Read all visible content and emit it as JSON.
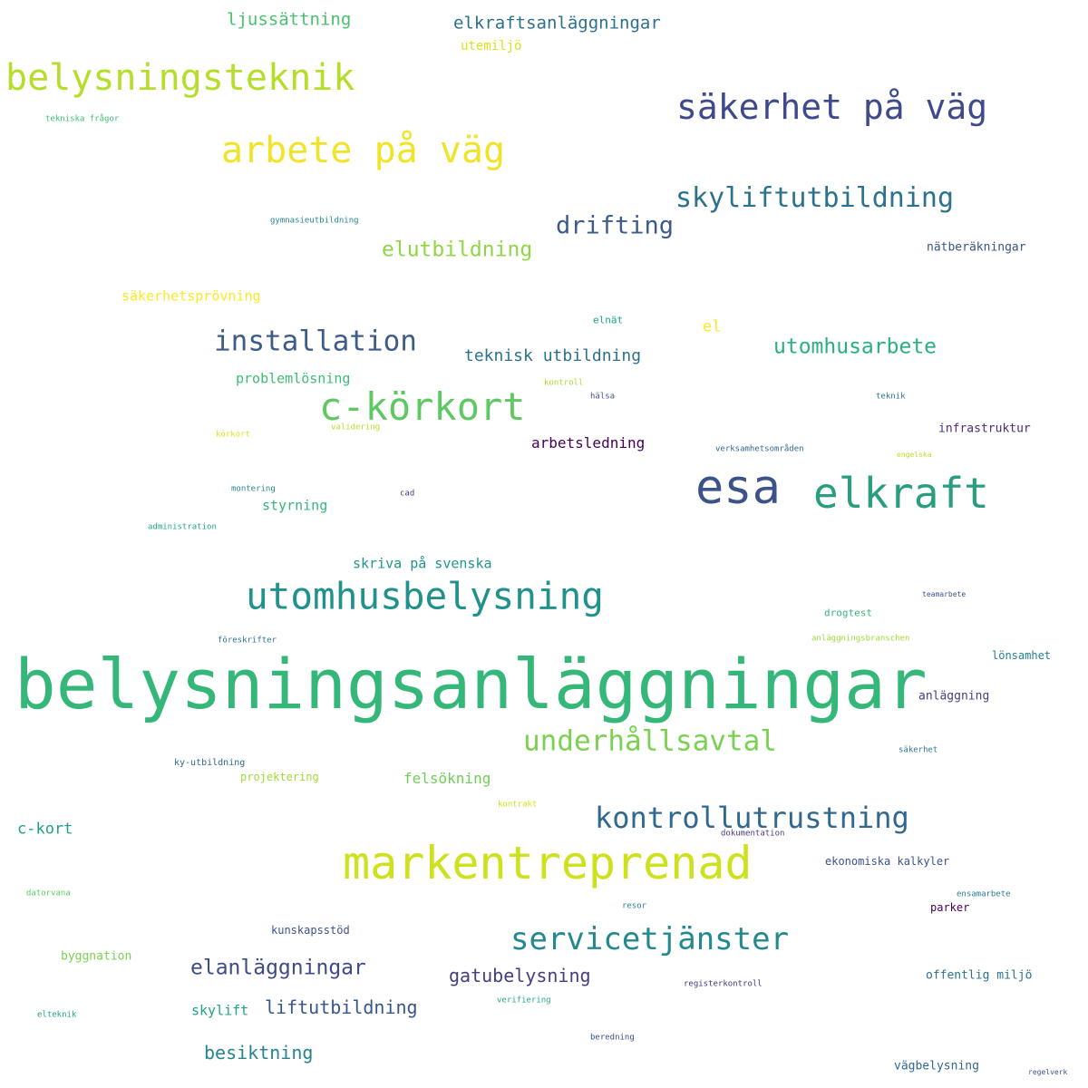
{
  "words": [
    {
      "text": "belysningsanläggningar",
      "color": "#35b779"
    },
    {
      "text": "markentreprenad",
      "color": "#cde11d"
    },
    {
      "text": "esa",
      "color": "#3b528b"
    },
    {
      "text": "elkraft",
      "color": "#2a9d7f"
    },
    {
      "text": "c-körkort",
      "color": "#5ec962"
    },
    {
      "text": "utomhusbelysning",
      "color": "#21918c"
    },
    {
      "text": "belysningsteknik",
      "color": "#b5de2b"
    },
    {
      "text": "arbete på väg",
      "color": "#f0e42a"
    },
    {
      "text": "säkerhet på väg",
      "color": "#3f4a8a"
    },
    {
      "text": "servicetjänster",
      "color": "#23898e"
    },
    {
      "text": "kontrollutrustning",
      "color": "#31688e"
    },
    {
      "text": "underhållsavtal",
      "color": "#7ad151"
    },
    {
      "text": "installation",
      "color": "#3e5c8a"
    },
    {
      "text": "skyliftutbildning",
      "color": "#2c728e"
    },
    {
      "text": "drifting",
      "color": "#3b5c8b"
    },
    {
      "text": "elanläggningar",
      "color": "#3e4a89"
    },
    {
      "text": "utomhusarbete",
      "color": "#2ab07f"
    },
    {
      "text": "elutbildning",
      "color": "#8fd744"
    },
    {
      "text": "gatubelysning",
      "color": "#433e85"
    },
    {
      "text": "liftutbildning",
      "color": "#39568c"
    },
    {
      "text": "besiktning",
      "color": "#25848e"
    },
    {
      "text": "elkraftsanläggningar",
      "color": "#2d708e"
    },
    {
      "text": "ljussättning",
      "color": "#4ac16d"
    },
    {
      "text": "teknisk utbildning",
      "color": "#2c728e"
    },
    {
      "text": "arbetsledning",
      "color": "#440154"
    },
    {
      "text": "c-kort",
      "color": "#1f9e89"
    },
    {
      "text": "felsökning",
      "color": "#6ece58"
    },
    {
      "text": "skriva på svenska",
      "color": "#1f958b"
    },
    {
      "text": "problemlösning",
      "color": "#3dbc74"
    },
    {
      "text": "styrning",
      "color": "#35b779"
    },
    {
      "text": "skylift",
      "color": "#20a386"
    },
    {
      "text": "säkerhetsprövning",
      "color": "#fde725"
    },
    {
      "text": "el",
      "color": "#fde725"
    },
    {
      "text": "utemiljö",
      "color": "#dde318"
    },
    {
      "text": "nätberäkningar",
      "color": "#3b528b"
    },
    {
      "text": "infrastruktur",
      "color": "#472d7b"
    },
    {
      "text": "anläggning",
      "color": "#433e85"
    },
    {
      "text": "lönsamhet",
      "color": "#287d8e"
    },
    {
      "text": "drogtest",
      "color": "#34b679"
    },
    {
      "text": "ekonomiska kalkyler",
      "color": "#3b528b"
    },
    {
      "text": "offentlig miljö",
      "color": "#2c728e"
    },
    {
      "text": "vägbelysning",
      "color": "#31688e"
    },
    {
      "text": "kunskapsstöd",
      "color": "#3b528b"
    },
    {
      "text": "byggnation",
      "color": "#7ad151"
    },
    {
      "text": "projektering",
      "color": "#a0da39"
    },
    {
      "text": "parker",
      "color": "#440154"
    },
    {
      "text": "ky-utbildning",
      "color": "#31688e"
    },
    {
      "text": "elnät",
      "color": "#20a386"
    },
    {
      "text": "tekniska frågor",
      "color": "#3dbc74"
    },
    {
      "text": "gymnasieutbildning",
      "color": "#25848e"
    },
    {
      "text": "kontroll",
      "color": "#a8db34"
    },
    {
      "text": "hälsa",
      "color": "#3b528b"
    },
    {
      "text": "teknik",
      "color": "#2c728e"
    },
    {
      "text": "validering",
      "color": "#b5de2b"
    },
    {
      "text": "körkort",
      "color": "#dde318"
    },
    {
      "text": "verksamhetsområden",
      "color": "#31688e"
    },
    {
      "text": "engelska",
      "color": "#c2df23"
    },
    {
      "text": "montering",
      "color": "#25848e"
    },
    {
      "text": "cad",
      "color": "#443983"
    },
    {
      "text": "administration",
      "color": "#22a884"
    },
    {
      "text": "teamarbete",
      "color": "#3b528b"
    },
    {
      "text": "föreskrifter",
      "color": "#2c728e"
    },
    {
      "text": "anläggningsbranschen",
      "color": "#a0da39"
    },
    {
      "text": "säkerhet",
      "color": "#2a788e"
    },
    {
      "text": "kontrakt",
      "color": "#d2e21b"
    },
    {
      "text": "dokumentation",
      "color": "#443983"
    },
    {
      "text": "datorvana",
      "color": "#5ec962"
    },
    {
      "text": "resor",
      "color": "#26828e"
    },
    {
      "text": "ensamarbete",
      "color": "#287d8e"
    },
    {
      "text": "registerkontroll",
      "color": "#46327e"
    },
    {
      "text": "verifiering",
      "color": "#22a884"
    },
    {
      "text": "elteknik",
      "color": "#1fa187"
    },
    {
      "text": "beredning",
      "color": "#3e4a89"
    },
    {
      "text": "regelverk",
      "color": "#3b528b"
    }
  ]
}
